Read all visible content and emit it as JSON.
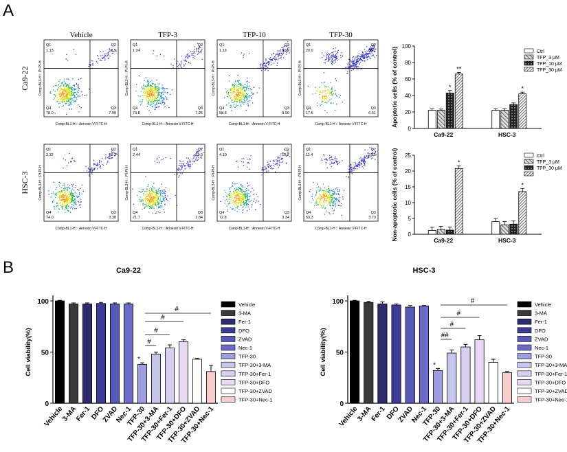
{
  "panel_labels": [
    "A",
    "B"
  ],
  "flow": {
    "row_labels": [
      "Ca9-22",
      "HSC-3"
    ],
    "col_labels": [
      "Vehicle",
      "TFP-3",
      "TFP-10",
      "TFP-30"
    ],
    "xaxis_label": "Comp-BL1-H :: Annexin V-FITC-H",
    "yaxis_label": "Comp-BL3-H :: PI-PI-H",
    "quadrant_names": [
      "Q1",
      "Q2",
      "Q3",
      "Q4"
    ],
    "plots": [
      [
        {
          "q1": "1.13",
          "q2": "12.9",
          "q3": "7.98",
          "q4": "78.0"
        },
        {
          "q1": "1.24",
          "q2": "17.7",
          "q3": "7.25",
          "q4": "73.8"
        },
        {
          "q1": "1.13",
          "q2": "30.2",
          "q3": "9.90",
          "q4": "58.8"
        },
        {
          "q1": "20.0",
          "q2": "56.1",
          "q3": "6.51",
          "q4": "17.5"
        }
      ],
      [
        {
          "q1": "3.32",
          "q2": "19.3",
          "q3": "3.38",
          "q4": "74.0"
        },
        {
          "q1": "2.44",
          "q2": "23.0",
          "q3": "2.84",
          "q4": "71.7"
        },
        {
          "q1": "4.10",
          "q2": "19.7",
          "q3": "3.34",
          "q4": "72.8"
        },
        {
          "q1": "11.4",
          "q2": "31.5",
          "q3": "3.73",
          "q4": "53.3"
        }
      ]
    ]
  },
  "chart_data": [
    {
      "type": "bar",
      "title": "",
      "ylabel": "Apoptotic cells (% of control)",
      "categories": [
        "Ca9-22",
        "HSC-3"
      ],
      "ylim": [
        0,
        100
      ],
      "yticks": [
        "0",
        "20",
        "40",
        "60",
        "80",
        "100"
      ],
      "series": [
        {
          "name": "Ctrl",
          "values": [
            22,
            22
          ],
          "errors": [
            2,
            2
          ],
          "sig": [
            "",
            ""
          ]
        },
        {
          "name": "TFP_3 μM",
          "values": [
            22,
            22
          ],
          "errors": [
            1.5,
            2
          ],
          "sig": [
            "",
            ""
          ]
        },
        {
          "name": "TFP_10 μM",
          "values": [
            43,
            29
          ],
          "errors": [
            3,
            2
          ],
          "sig": [
            "*",
            ""
          ]
        },
        {
          "name": "TFP_30 μM",
          "values": [
            66,
            42
          ],
          "errors": [
            2,
            2
          ],
          "sig": [
            "**",
            "*"
          ]
        }
      ],
      "legend": "top-right"
    },
    {
      "type": "bar",
      "title": "",
      "ylabel": "Non-apoptotic cells (% of control)",
      "categories": [
        "Ca9-22",
        "HSC-3"
      ],
      "ylim": [
        0,
        25
      ],
      "yticks": [
        "0",
        "5",
        "10",
        "15",
        "20",
        "25"
      ],
      "series": [
        {
          "name": "Ctrl",
          "values": [
            1.2,
            4
          ],
          "errors": [
            1,
            1
          ],
          "sig": [
            "",
            ""
          ]
        },
        {
          "name": "TFP_3 μM",
          "values": [
            1.5,
            3
          ],
          "errors": [
            1,
            1
          ],
          "sig": [
            "",
            ""
          ]
        },
        {
          "name": "TFP_30 μM",
          "values": [
            1.3,
            3.2
          ],
          "errors": [
            1,
            1
          ],
          "sig": [
            "",
            ""
          ]
        },
        {
          "name": "",
          "values": [
            20.8,
            13.5
          ],
          "errors": [
            0.8,
            1
          ],
          "sig": [
            "*",
            "*"
          ]
        }
      ],
      "legend": "top-right"
    },
    {
      "type": "bar",
      "title": "Ca9-22",
      "ylabel": "Cell viability(%)",
      "categories": [
        "Vehicle",
        "3-MA",
        "Fer-1",
        "DFO",
        "ZVAD",
        "Nec-1",
        "TFP-30",
        "TFP-30+3-MA",
        "TFP-30+Fer-1",
        "TFP-30+DFO",
        "TFP-30+ZVAD",
        "TFP-30+Nec-1"
      ],
      "legend_entries": [
        "Vehicle",
        "3-MA",
        "Fer-1",
        "DFO",
        "ZVAD",
        "Nec-1",
        "TFP-30",
        "TFP-30+3-MA",
        "TFP-30+Fer-1",
        "TFP-30+DFO",
        "TFP-30+ZVAD",
        "TFP-30+Nec-1"
      ],
      "values": [
        100,
        97,
        97,
        97.5,
        97,
        97,
        38,
        48,
        54,
        60,
        43,
        31
      ],
      "errors": [
        0.5,
        1,
        1,
        1,
        1,
        1,
        1.5,
        2,
        3,
        2,
        1,
        6
      ],
      "ylim": [
        0,
        100
      ],
      "yticks": [
        "0",
        "50",
        "100"
      ],
      "annotations": [
        "*",
        "#",
        "#",
        "#",
        "#"
      ],
      "colors": [
        "#000000",
        "#3a3a3a",
        "#2b2b6e",
        "#3c3c96",
        "#5858b8",
        "#6c6cc8",
        "#9e9ee0",
        "#c6c6ec",
        "#d8cef0",
        "#e8d8f2",
        "#ffffff",
        "#f6cccc"
      ],
      "legend": "right"
    },
    {
      "type": "bar",
      "title": "HSC-3",
      "ylabel": "Cell viability(%)",
      "categories": [
        "Vehicle",
        "3-MA",
        "Fer-1",
        "DFO",
        "ZVAD",
        "Nec-1",
        "TFP-30",
        "TFP-30+3-MA",
        "TFP-30+Fer-1",
        "TFP-30+DFO",
        "TFP-30+ZVAD",
        "TFP-30+Nec-1"
      ],
      "legend_entries": [
        "Vehicle",
        "3-MA",
        "Fer-1",
        "DFO",
        "ZVAD",
        "Nec-1",
        "TFP-30",
        "TFP-30+3-MA",
        "TFP-30+Fer-1",
        "TFP-30+DFO",
        "TFP-30+ZVAD",
        "TFP-30+Neo-1"
      ],
      "values": [
        100,
        98.5,
        97,
        96,
        94,
        95,
        32,
        49,
        55,
        62,
        40,
        30
      ],
      "errors": [
        0.5,
        1,
        2,
        1,
        1.5,
        0.5,
        2,
        3,
        2.5,
        4,
        3,
        1
      ],
      "ylim": [
        0,
        100
      ],
      "yticks": [
        "0",
        "50",
        "100"
      ],
      "annotations": [
        "*",
        "##",
        "#",
        "#",
        "#"
      ],
      "colors": [
        "#000000",
        "#3a3a3a",
        "#2b2b6e",
        "#3c3c96",
        "#5858b8",
        "#6c6cc8",
        "#9e9ee0",
        "#c6c6ec",
        "#d8cef0",
        "#e8d8f2",
        "#ffffff",
        "#f6cccc"
      ],
      "legend": "right"
    }
  ]
}
